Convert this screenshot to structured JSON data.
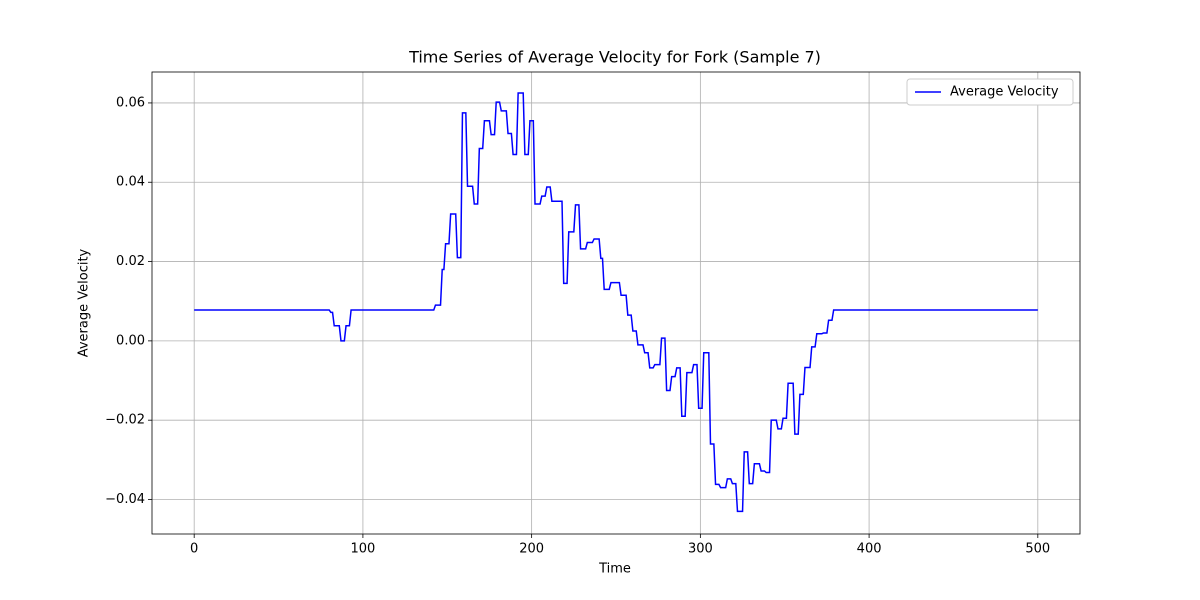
{
  "chart_data": {
    "type": "line",
    "title": "Time Series of Average Velocity for Fork (Sample 7)",
    "x_label": "Time",
    "y_label": "Average Velocity",
    "xlim": [
      -25,
      525
    ],
    "ylim": [
      -0.0487,
      0.0678
    ],
    "xticks": [
      0,
      100,
      200,
      300,
      400,
      500
    ],
    "yticks": [
      {
        "value": -0.04,
        "label": "−0.04"
      },
      {
        "value": -0.02,
        "label": "−0.02"
      },
      {
        "value": 0,
        "label": "0.00"
      },
      0.02,
      0.04,
      0.06
    ],
    "grid": true,
    "legend": "upper right",
    "x": [
      0,
      80,
      81,
      82,
      83,
      86,
      87,
      89,
      90,
      92,
      93,
      142,
      143,
      146,
      147,
      148,
      149,
      151,
      152,
      155,
      156,
      158,
      159,
      161,
      162,
      165,
      166,
      168,
      169,
      171,
      172,
      175,
      176,
      178,
      179,
      181,
      182,
      185,
      186,
      188,
      189,
      191,
      192,
      195,
      196,
      198,
      199,
      201,
      202,
      205,
      206,
      208,
      209,
      211,
      212,
      218,
      219,
      221,
      222,
      225,
      226,
      228,
      229,
      232,
      233,
      236,
      237,
      240,
      241,
      242,
      243,
      246,
      247,
      252,
      253,
      256,
      257,
      259,
      260,
      262,
      263,
      266,
      267,
      269,
      270,
      272,
      273,
      276,
      277,
      279,
      280,
      282,
      283,
      285,
      286,
      288,
      289,
      291,
      292,
      295,
      296,
      298,
      299,
      301,
      302,
      305,
      306,
      308,
      309,
      311,
      312,
      315,
      316,
      318,
      319,
      321,
      322,
      325,
      326,
      328,
      329,
      331,
      332,
      335,
      336,
      338,
      339,
      341,
      342,
      345,
      346,
      348,
      349,
      351,
      352,
      355,
      356,
      358,
      359,
      361,
      362,
      365,
      366,
      368,
      369,
      372,
      373,
      375,
      376,
      378,
      379,
      500
    ],
    "series": [
      {
        "name": "Average Velocity",
        "color": "#0000ff",
        "values": [
          0.0078,
          0.0078,
          0.0072,
          0.0072,
          0.0038,
          0.0038,
          0.0,
          0.0,
          0.0038,
          0.0038,
          0.0078,
          0.0078,
          0.009,
          0.009,
          0.018,
          0.018,
          0.0245,
          0.0245,
          0.032,
          0.032,
          0.021,
          0.021,
          0.0575,
          0.0575,
          0.039,
          0.039,
          0.0345,
          0.0345,
          0.0485,
          0.0485,
          0.0555,
          0.0555,
          0.052,
          0.052,
          0.0602,
          0.0602,
          0.058,
          0.058,
          0.0523,
          0.0523,
          0.047,
          0.047,
          0.0625,
          0.0625,
          0.047,
          0.047,
          0.0555,
          0.0555,
          0.0345,
          0.0345,
          0.0365,
          0.0365,
          0.0388,
          0.0388,
          0.0352,
          0.0352,
          0.0145,
          0.0145,
          0.0275,
          0.0275,
          0.0343,
          0.0343,
          0.0232,
          0.0232,
          0.0248,
          0.0248,
          0.0257,
          0.0257,
          0.0208,
          0.0208,
          0.013,
          0.013,
          0.0147,
          0.0147,
          0.0115,
          0.0115,
          0.0065,
          0.0065,
          0.0025,
          0.0025,
          -0.001,
          -0.001,
          -0.003,
          -0.003,
          -0.0068,
          -0.0068,
          -0.006,
          -0.006,
          0.0007,
          0.0007,
          -0.0125,
          -0.0125,
          -0.009,
          -0.009,
          -0.0068,
          -0.0068,
          -0.019,
          -0.019,
          -0.008,
          -0.008,
          -0.006,
          -0.006,
          -0.017,
          -0.017,
          -0.003,
          -0.003,
          -0.026,
          -0.026,
          -0.0362,
          -0.0362,
          -0.037,
          -0.037,
          -0.0348,
          -0.0348,
          -0.036,
          -0.036,
          -0.043,
          -0.043,
          -0.028,
          -0.028,
          -0.036,
          -0.036,
          -0.031,
          -0.031,
          -0.0328,
          -0.0328,
          -0.0332,
          -0.0332,
          -0.02,
          -0.02,
          -0.0222,
          -0.0222,
          -0.0195,
          -0.0195,
          -0.0107,
          -0.0107,
          -0.0235,
          -0.0235,
          -0.0135,
          -0.0135,
          -0.0067,
          -0.0067,
          -0.0015,
          -0.0015,
          0.0018,
          0.0018,
          0.002,
          0.002,
          0.0052,
          0.0052,
          0.0078,
          0.0078
        ]
      }
    ]
  }
}
